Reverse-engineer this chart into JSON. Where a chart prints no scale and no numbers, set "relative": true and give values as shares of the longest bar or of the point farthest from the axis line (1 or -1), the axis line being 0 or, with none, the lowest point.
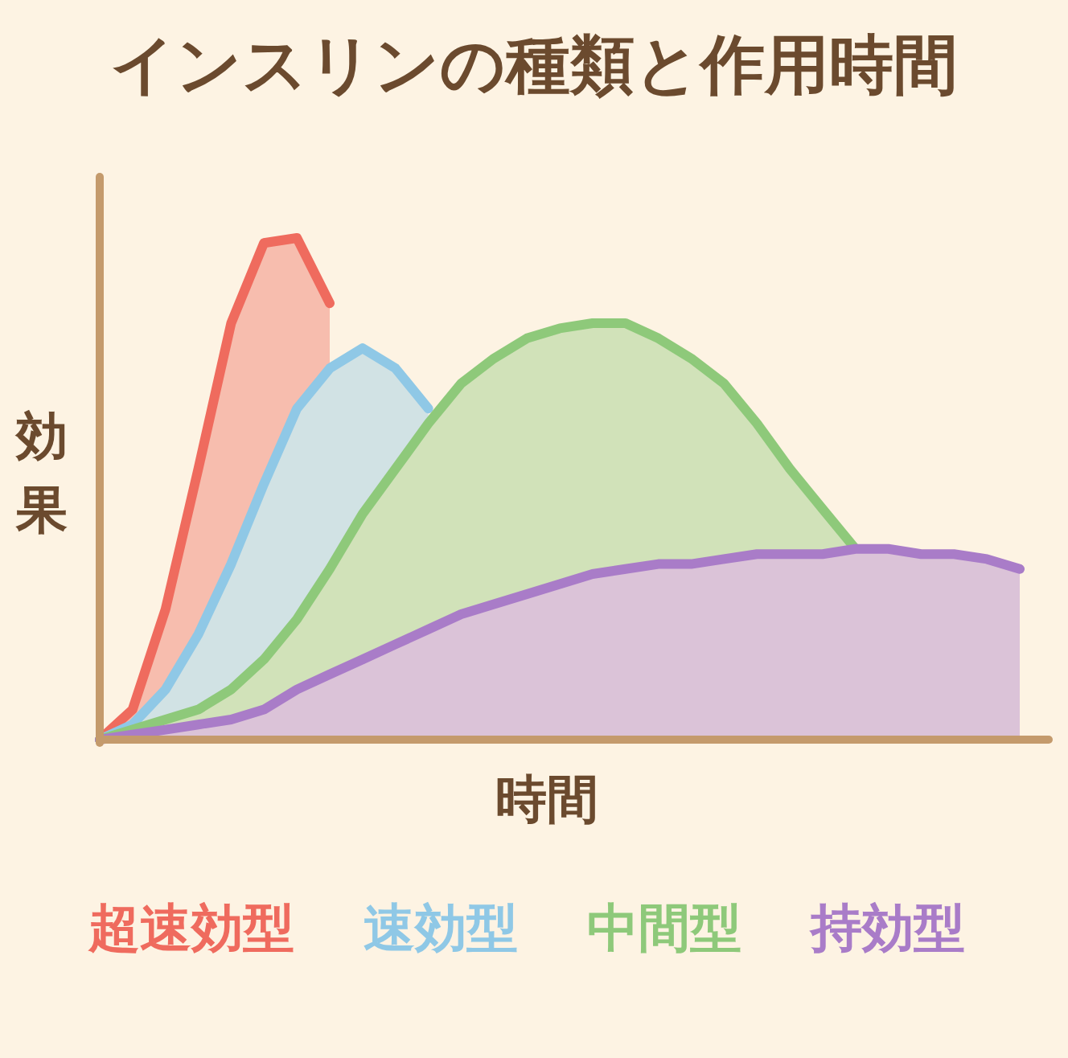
{
  "chart_data": {
    "type": "area",
    "title": "インスリンの種類と作用時間",
    "xlabel": "時間",
    "ylabel": "効果",
    "relative": true,
    "legend": "bottom",
    "categories": [
      null,
      null,
      null,
      null,
      null,
      null,
      null,
      null,
      null,
      null,
      null,
      null,
      null,
      null,
      null,
      null,
      null,
      null,
      null,
      null,
      null,
      null,
      null,
      null,
      null,
      null,
      null,
      null,
      null
    ],
    "series": [
      {
        "name": "超速効型",
        "color": "#ef6b5e",
        "values": [
          0,
          0.06,
          0.26,
          0.54,
          0.83,
          0.99,
          1,
          0.87,
          null,
          null,
          null,
          null,
          null,
          null,
          null,
          null,
          null,
          null,
          null,
          null,
          null,
          null,
          null,
          null,
          null,
          null,
          null,
          null,
          null
        ]
      },
      {
        "name": "速効型",
        "color": "#8fc8e6",
        "values": [
          0,
          0.03,
          0.1,
          0.21,
          0.35,
          0.51,
          0.66,
          0.74,
          0.78,
          0.74,
          0.66,
          null,
          null,
          null,
          null,
          null,
          null,
          null,
          null,
          null,
          null,
          null,
          null,
          null,
          null,
          null,
          null,
          null,
          null
        ]
      },
      {
        "name": "中間型",
        "color": "#8ec97a",
        "values": [
          0,
          0.02,
          0.04,
          0.06,
          0.1,
          0.16,
          0.24,
          0.34,
          0.45,
          0.54,
          0.63,
          0.71,
          0.76,
          0.8,
          0.82,
          0.83,
          0.83,
          0.8,
          0.76,
          0.71,
          0.63,
          0.54,
          0.46,
          0.38,
          null,
          null,
          null,
          null,
          null
        ]
      },
      {
        "name": "持効型",
        "color": "#a97cc8",
        "values": [
          0,
          0.01,
          0.02,
          0.03,
          0.04,
          0.06,
          0.1,
          0.13,
          0.16,
          0.19,
          0.22,
          0.25,
          0.27,
          0.29,
          0.31,
          0.33,
          0.34,
          0.35,
          0.35,
          0.36,
          0.37,
          0.37,
          0.37,
          0.38,
          0.38,
          0.37,
          0.37,
          0.36,
          0.34
        ]
      }
    ]
  }
}
